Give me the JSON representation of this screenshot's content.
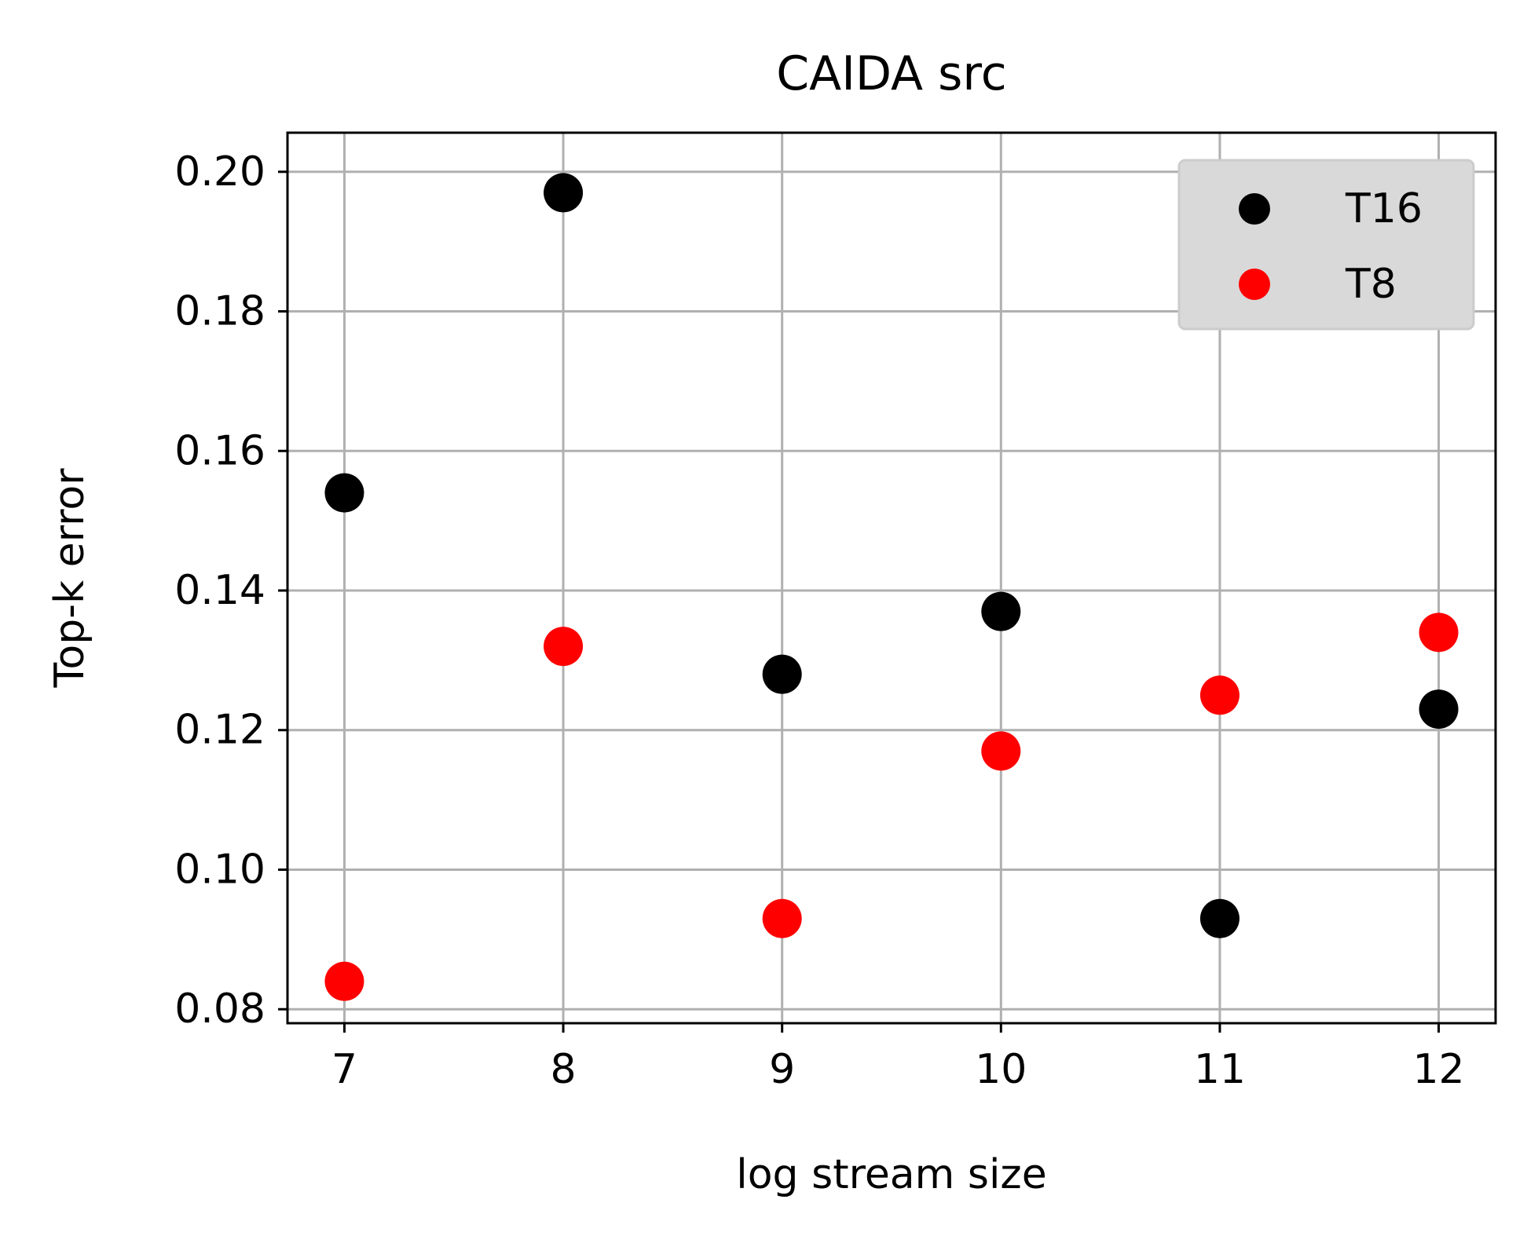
{
  "chart_data": {
    "type": "scatter",
    "title": "CAIDA src",
    "xlabel": "log stream size",
    "ylabel": "Top-k error",
    "xlim": [
      6.74,
      12.26
    ],
    "ylim": [
      0.078,
      0.2056
    ],
    "xticks": [
      7,
      8,
      9,
      10,
      11,
      12
    ],
    "yticks": [
      0.08,
      0.1,
      0.12,
      0.14,
      0.16,
      0.18,
      0.2
    ],
    "xtick_labels": [
      "7",
      "8",
      "9",
      "10",
      "11",
      "12"
    ],
    "ytick_labels": [
      "0.08",
      "0.10",
      "0.12",
      "0.14",
      "0.16",
      "0.18",
      "0.20"
    ],
    "grid": true,
    "legend_position": "upper right",
    "series": [
      {
        "name": "T16",
        "color": "#000000",
        "x": [
          7,
          8,
          9,
          10,
          11,
          12
        ],
        "y": [
          0.154,
          0.197,
          0.128,
          0.137,
          0.093,
          0.123
        ]
      },
      {
        "name": "T8",
        "color": "#ff0000",
        "x": [
          7,
          8,
          9,
          10,
          11,
          12
        ],
        "y": [
          0.084,
          0.132,
          0.093,
          0.117,
          0.125,
          0.134
        ]
      }
    ]
  }
}
